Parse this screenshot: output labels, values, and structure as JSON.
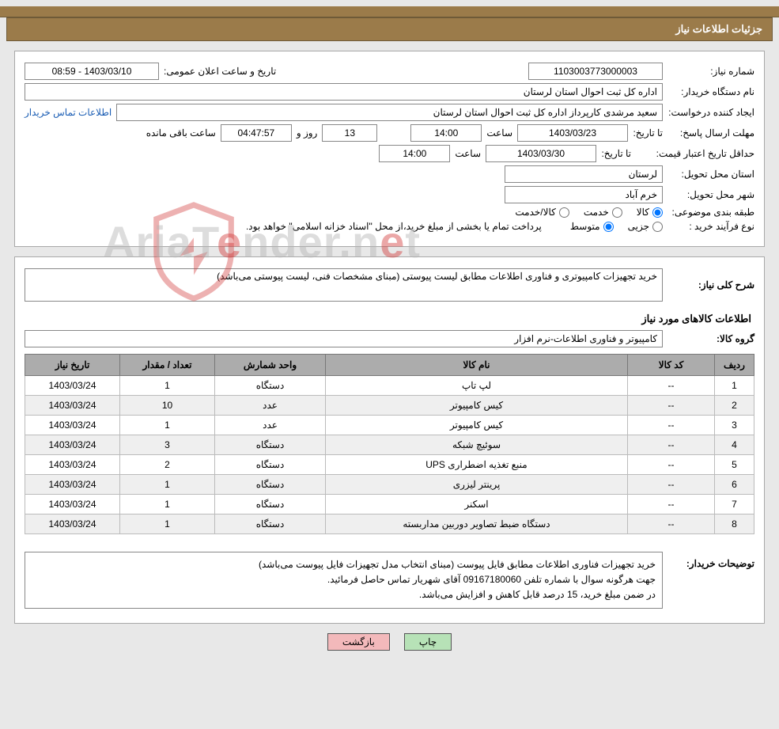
{
  "title_bar": "جزئیات اطلاعات نیاز",
  "panel1": {
    "need_no_label": "شماره نیاز:",
    "need_no": "1103003773000003",
    "announce_label": "تاریخ و ساعت اعلان عمومی:",
    "announce_value": "1403/03/10 - 08:59",
    "buyer_org_label": "نام دستگاه خریدار:",
    "buyer_org": "اداره کل ثبت احوال استان لرستان",
    "requester_label": "ایجاد کننده درخواست:",
    "requester": "سعید مرشدی کارپرداز اداره کل ثبت احوال استان لرستان",
    "contact_link": "اطلاعات تماس خریدار",
    "deadline_label": "مهلت ارسال پاسخ:",
    "to_date_label": "تا تاریخ:",
    "deadline_date": "1403/03/23",
    "time_label": "ساعت",
    "deadline_time": "14:00",
    "days": "13",
    "days_and_label": "روز و",
    "countdown": "04:47:57",
    "remaining_label": "ساعت باقی مانده",
    "validity_label": "حداقل تاریخ اعتبار قیمت:",
    "validity_date": "1403/03/30",
    "validity_time": "14:00",
    "province_label": "استان محل تحویل:",
    "province": "لرستان",
    "city_label": "شهر محل تحویل:",
    "city": "خرم آباد",
    "category_label": "طبقه بندی موضوعی:",
    "cat_goods": "کالا",
    "cat_service": "خدمت",
    "cat_goods_service": "کالا/خدمت",
    "process_label": "نوع فرآیند خرید :",
    "proc_partial": "جزیی",
    "proc_medium": "متوسط",
    "process_note": "پرداخت تمام یا بخشی از مبلغ خرید،از محل \"اسناد خزانه اسلامی\" خواهد بود."
  },
  "panel2": {
    "summary_label": "شرح کلی نیاز:",
    "summary": "خرید تجهیزات کامپیوتری و فناوری اطلاعات مطابق لیست پیوستی (مبنای مشخصات فنی، لیست پیوستی می‌باشد)",
    "items_heading": "اطلاعات کالاهای مورد نیاز",
    "group_label": "گروه کالا:",
    "group": "کامپیوتر و فناوری اطلاعات-نرم افزار",
    "columns": [
      "ردیف",
      "کد کالا",
      "نام کالا",
      "واحد شمارش",
      "تعداد / مقدار",
      "تاریخ نیاز"
    ],
    "rows": [
      [
        "1",
        "--",
        "لپ تاپ",
        "دستگاه",
        "1",
        "1403/03/24"
      ],
      [
        "2",
        "--",
        "کیس کامپیوتر",
        "عدد",
        "10",
        "1403/03/24"
      ],
      [
        "3",
        "--",
        "کیس کامپیوتر",
        "عدد",
        "1",
        "1403/03/24"
      ],
      [
        "4",
        "--",
        "سوئیچ شبکه",
        "دستگاه",
        "3",
        "1403/03/24"
      ],
      [
        "5",
        "--",
        "منبع تغذیه اضطراری UPS",
        "دستگاه",
        "2",
        "1403/03/24"
      ],
      [
        "6",
        "--",
        "پرینتر لیزری",
        "دستگاه",
        "1",
        "1403/03/24"
      ],
      [
        "7",
        "--",
        "اسکنر",
        "دستگاه",
        "1",
        "1403/03/24"
      ],
      [
        "8",
        "--",
        "دستگاه ضبط تصاویر دوربین مداربسته",
        "دستگاه",
        "1",
        "1403/03/24"
      ]
    ],
    "desc_label": "توضیحات خریدار:",
    "desc_line1": "خرید تجهیزات فناوری اطلاعات مطابق فایل پیوست (مبنای انتخاب مدل تجهیزات فایل پیوست می‌باشد)",
    "desc_line2": "جهت هرگونه سوال با شماره تلفن 09167180060 آقای شهریار تماس حاصل فرمائید.",
    "desc_line3": "در ضمن مبلغ خرید، 15 درصد قابل کاهش و افزایش می‌باشد."
  },
  "buttons": {
    "print": "چاپ",
    "back": "بازگشت"
  },
  "watermark": {
    "pre": "AriaT",
    "hl": "e",
    "post": "nder.n",
    "hl2": "e",
    "post2": "t"
  },
  "colors": {
    "bar": "#9b7b4a",
    "panel_border": "#a8a8a8",
    "th_bg": "#acacac",
    "btn_print": "#b7e2b7",
    "btn_back": "#f3b9bb"
  }
}
